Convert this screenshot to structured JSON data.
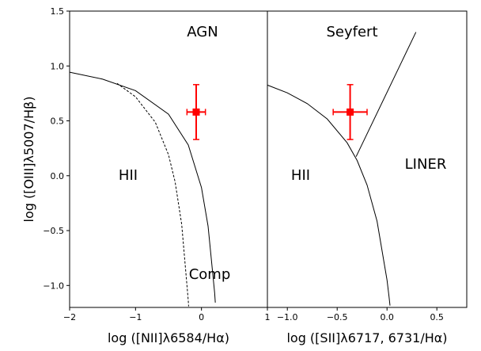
{
  "chart_data": [
    {
      "type": "line",
      "xlabel": "log ([NII]λ6584/Hα)",
      "ylabel": "log ([OIII]λ5007/Hβ)",
      "xlim": [
        -2,
        1
      ],
      "ylim": [
        -1.2,
        1.5
      ],
      "xticks": [
        {
          "value": -2,
          "label": "−2"
        },
        {
          "value": -1,
          "label": "−1"
        },
        0,
        1
      ],
      "yticks": [
        {
          "value": -1.0,
          "label": "−1.0"
        },
        {
          "value": -0.5,
          "label": "−0.5"
        },
        {
          "value": 0.0,
          "label": "0.0"
        },
        {
          "value": 0.5,
          "label": "0.5"
        },
        {
          "value": 1.0,
          "label": "1.0"
        },
        {
          "value": 1.5,
          "label": "1.5"
        }
      ],
      "annotations": [
        "AGN",
        "HII",
        "Comp"
      ],
      "series": [
        {
          "color": "#000000",
          "dashed": false,
          "x": [
            -2,
            -1.5,
            -1,
            -0.5,
            -0.2,
            0,
            0.1,
            0.2,
            0.21
          ],
          "values": [
            0.943,
            0.88,
            0.775,
            0.561,
            0.28,
            -0.108,
            -0.459,
            -1.069,
            -1.156
          ]
        },
        {
          "color": "#000000",
          "dashed": true,
          "x": [
            -1.28,
            -1,
            -0.7,
            -0.5,
            -0.4,
            -0.3,
            -0.2,
            -0.195
          ],
          "values": [
            0.841,
            0.719,
            0.487,
            0.191,
            -0.056,
            -0.443,
            -1.14,
            -1.19
          ]
        }
      ],
      "points": {
        "color": "#ff0000",
        "x": [
          -0.08
        ],
        "values": [
          0.58
        ],
        "xerr": [
          0.14
        ],
        "yerr": [
          0.25
        ]
      }
    },
    {
      "type": "line",
      "xlabel": "log ([SII]λ6717, 6731/Hα)",
      "xlim": [
        -1.2,
        0.8
      ],
      "ylim": [
        -1.2,
        1.5
      ],
      "xticks": [
        {
          "value": -1.0,
          "label": "−1.0"
        },
        {
          "value": -0.5,
          "label": "−0.5"
        },
        {
          "value": 0.0,
          "label": "0.0"
        },
        {
          "value": 0.5,
          "label": "0.5"
        }
      ],
      "annotations": [
        "Seyfert",
        "HII",
        "LINER"
      ],
      "series": [
        {
          "color": "#000000",
          "dashed": false,
          "x": [
            -1.2,
            -1,
            -0.8,
            -0.6,
            -0.4,
            -0.3,
            -0.2,
            -0.1,
            0,
            0.02,
            0.03
          ],
          "values": [
            0.826,
            0.755,
            0.657,
            0.517,
            0.3,
            0.139,
            -0.085,
            -0.414,
            -0.95,
            -1.1,
            -1.183
          ]
        },
        {
          "color": "#000000",
          "dashed": false,
          "x": [
            -0.31,
            0.29
          ],
          "values": [
            0.174,
            1.308
          ]
        }
      ],
      "points": {
        "color": "#ff0000",
        "x": [
          -0.37
        ],
        "values": [
          0.58
        ],
        "xerr": [
          0.17
        ],
        "yerr": [
          0.25
        ]
      }
    }
  ]
}
